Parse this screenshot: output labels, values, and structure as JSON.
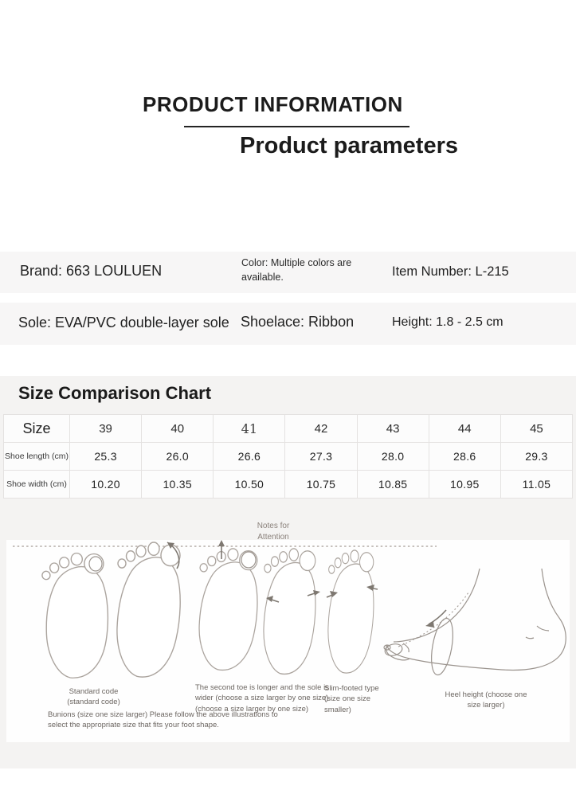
{
  "header": {
    "title": "PRODUCT INFORMATION",
    "subtitle": "Product parameters"
  },
  "specs": {
    "brand": "Brand: 663 LOULUEN",
    "color": "Color: Multiple colors are available.",
    "item_number": "Item Number: L-215",
    "sole": "Sole: EVA/PVC double-layer sole",
    "shoelace": "Shoelace: Ribbon",
    "height": "Height: 1.8 - 2.5 cm"
  },
  "size_chart": {
    "title": "Size Comparison Chart",
    "corner_label": "Size",
    "sizes": [
      "39",
      "40",
      "41",
      "42",
      "43",
      "44",
      "45"
    ],
    "rows": [
      {
        "label": "Shoe length (cm)",
        "values": [
          "25.3",
          "26.0",
          "26.6",
          "27.3",
          "28.0",
          "28.6",
          "29.3"
        ]
      },
      {
        "label": "Shoe width (cm)",
        "values": [
          "10.20",
          "10.35",
          "10.50",
          "10.75",
          "10.85",
          "10.95",
          "11.05"
        ]
      }
    ]
  },
  "notes": {
    "heading": "Notes for\nAttention",
    "captions": {
      "standard": "Standard code\n(standard code)",
      "second_toe": "The second toe is longer and the sole is wider (choose a size larger by one size) (choose a size larger by one size)",
      "bunions": "Bunions (size one size larger) Please follow the above illustrations to select the appropriate size that fits your foot shape.",
      "slim": "Slim-footed type (size one size smaller)",
      "heel": "Heel height (choose one size larger)"
    }
  },
  "colors": {
    "section_bg": "#f4f3f2",
    "spec_row_bg": "#f7f6f6",
    "table_bg": "#fcfcfc",
    "table_border": "#e4e2e1",
    "sketch_stroke": "#aba49e",
    "caption_text": "#6b6560",
    "notes_text": "#8a817b",
    "heading_text": "#1b1b1b"
  }
}
